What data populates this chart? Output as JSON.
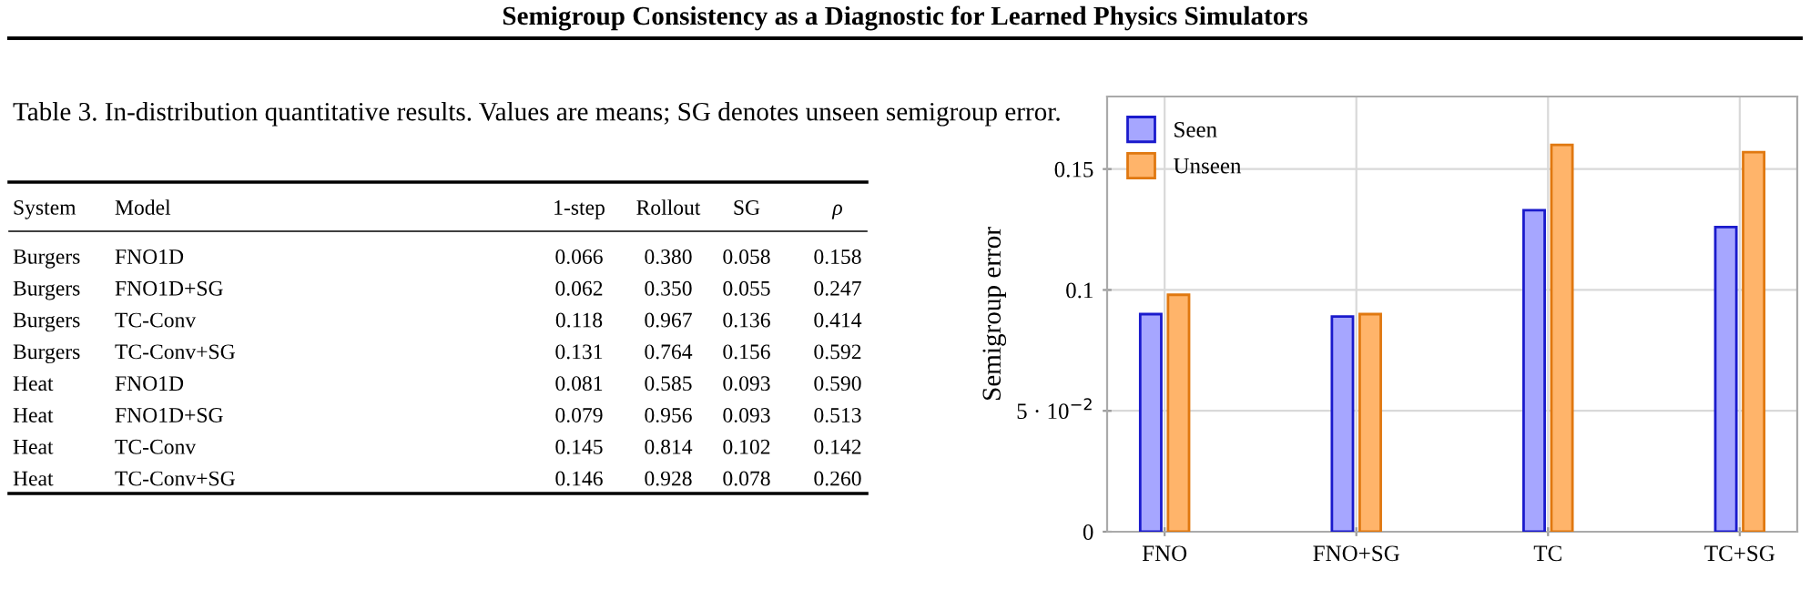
{
  "chart_data": [
    {
      "type": "other",
      "title": "Semigroup Consistency as a Diagnostic for Learned Physics Simulators",
      "subtitle": "Table 3. In-distribution quantitative results. Values are means; SG denotes unseen semigroup error.",
      "categories": [
        "System",
        "Model",
        "1-step",
        "Rollout",
        "SG",
        "ρ"
      ],
      "cell_labels": [
        [
          "Burgers",
          "FNO1D",
          "0.066",
          "0.380",
          "0.058",
          "0.158"
        ],
        [
          "Burgers",
          "FNO1D+SG",
          "0.062",
          "0.350",
          "0.055",
          "0.247"
        ],
        [
          "Burgers",
          "TC-Conv",
          "0.118",
          "0.967",
          "0.136",
          "0.414"
        ],
        [
          "Burgers",
          "TC-Conv+SG",
          "0.131",
          "0.764",
          "0.156",
          "0.592"
        ],
        [
          "Heat",
          "FNO1D",
          "0.081",
          "0.585",
          "0.093",
          "0.590"
        ],
        [
          "Heat",
          "FNO1D+SG",
          "0.079",
          "0.956",
          "0.093",
          "0.513"
        ],
        [
          "Heat",
          "TC-Conv",
          "0.145",
          "0.814",
          "0.102",
          "0.142"
        ],
        [
          "Heat",
          "TC-Conv+SG",
          "0.146",
          "0.928",
          "0.078",
          "0.260"
        ]
      ]
    },
    {
      "type": "bar",
      "ylabel": "Semigroup error",
      "categories": [
        "FNO",
        "FNO+SG",
        "TC",
        "TC+SG"
      ],
      "series": [
        {
          "name": "Seen",
          "color": "#a6a6ff",
          "values": [
            0.09,
            0.089,
            0.133,
            0.126
          ]
        },
        {
          "name": "Unseen",
          "color": "#ffb46a",
          "values": [
            0.098,
            0.09,
            0.16,
            0.157
          ]
        }
      ],
      "ylim": [
        0,
        0.18
      ],
      "yticks": [
        0,
        {
          "value": 0.05,
          "label": "5 · 10$^{−2}$"
        },
        0.1,
        0.15
      ],
      "grid": true,
      "legend": "top left"
    }
  ]
}
